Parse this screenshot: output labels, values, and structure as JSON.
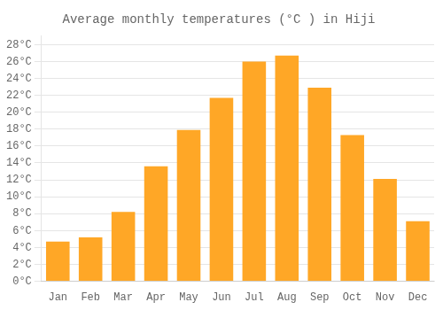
{
  "chart_data": {
    "type": "bar",
    "title": "Average monthly temperatures (°C ) in Hiji",
    "categories": [
      "Jan",
      "Feb",
      "Mar",
      "Apr",
      "May",
      "Jun",
      "Jul",
      "Aug",
      "Sep",
      "Oct",
      "Nov",
      "Dec"
    ],
    "values": [
      4.7,
      5.2,
      8.2,
      13.6,
      17.9,
      21.7,
      26.0,
      26.7,
      22.9,
      17.3,
      12.1,
      7.1
    ],
    "color": "#FFA726",
    "ylim": [
      0,
      29
    ],
    "yticks": [
      {
        "value": 0,
        "label": "0°C"
      },
      {
        "value": 2,
        "label": "2°C"
      },
      {
        "value": 4,
        "label": "4°C"
      },
      {
        "value": 6,
        "label": "6°C"
      },
      {
        "value": 8,
        "label": "8°C"
      },
      {
        "value": 10,
        "label": "10°C"
      },
      {
        "value": 12,
        "label": "12°C"
      },
      {
        "value": 14,
        "label": "14°C"
      },
      {
        "value": 16,
        "label": "16°C"
      },
      {
        "value": 18,
        "label": "18°C"
      },
      {
        "value": 20,
        "label": "20°C"
      },
      {
        "value": 22,
        "label": "22°C"
      },
      {
        "value": 24,
        "label": "24°C"
      },
      {
        "value": 26,
        "label": "26°C"
      },
      {
        "value": 28,
        "label": "28°C"
      }
    ],
    "grid": true
  }
}
